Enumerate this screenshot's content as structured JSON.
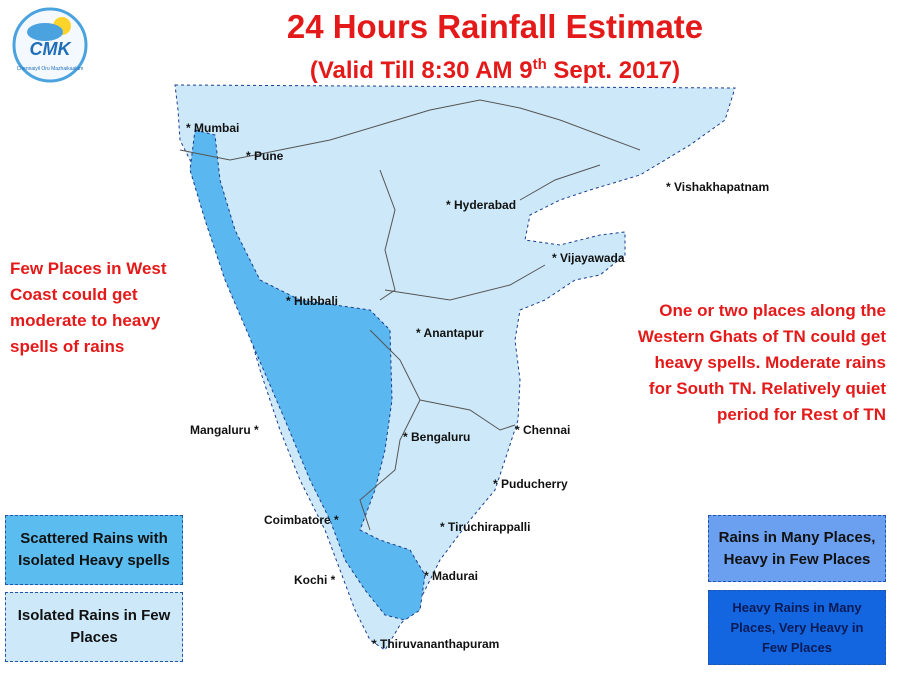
{
  "header": {
    "title": "24 Hours Rainfall Estimate",
    "subtitle_parts": [
      "(Valid Till 8:30 AM 9",
      "th",
      " Sept. 2017)"
    ]
  },
  "logo": {
    "name": "CMK",
    "tagline": "Chennaiyil Oru Mazhaikaalam"
  },
  "cities": [
    {
      "label": "* Mumbai"
    },
    {
      "label": "* Pune"
    },
    {
      "label": "* Hyderabad"
    },
    {
      "label": "* Vishakhapatnam"
    },
    {
      "label": "* Vijayawada"
    },
    {
      "label": "* Hubbali"
    },
    {
      "label": "* Anantapur"
    },
    {
      "label": "Mangaluru *"
    },
    {
      "label": "* Bengaluru"
    },
    {
      "label": "* Chennai"
    },
    {
      "label": "* Puducherry"
    },
    {
      "label": "Coimbatore *"
    },
    {
      "label": "* Tiruchirappalli"
    },
    {
      "label": "Kochi *"
    },
    {
      "label": "* Madurai"
    },
    {
      "label": "* Thiruvananthapuram"
    }
  ],
  "annotations": {
    "west_coast": "Few Places in West Coast could get moderate to heavy spells of rains",
    "tamil_nadu": "One or two places along the Western Ghats of TN could get heavy spells. Moderate rains for South TN.  Relatively quiet period for Rest of TN"
  },
  "legend": [
    {
      "label": "Scattered Rains with Isolated Heavy spells"
    },
    {
      "label": "Isolated Rains in Few  Places"
    },
    {
      "label": "Rains in Many Places, Heavy in Few Places"
    },
    {
      "label": "Heavy Rains in Many Places, Very Heavy in Few Places"
    }
  ]
}
